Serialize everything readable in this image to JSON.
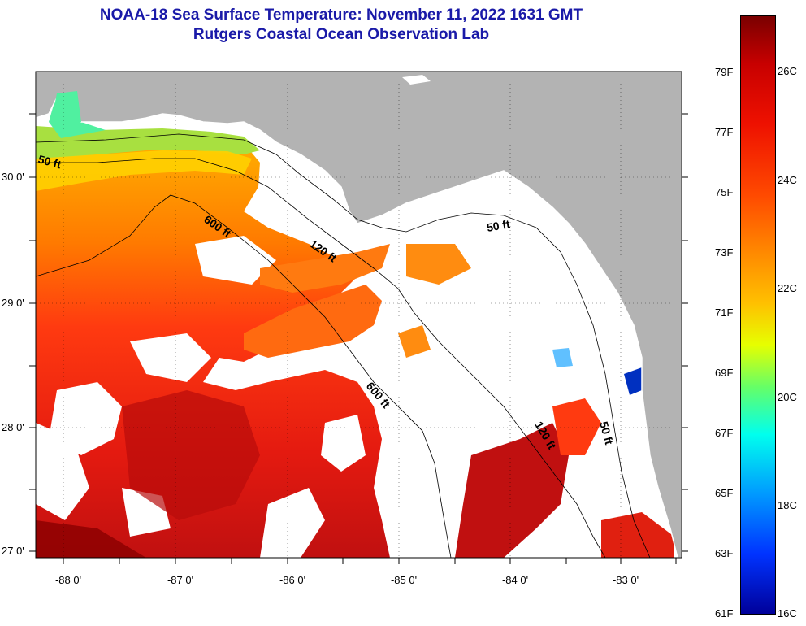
{
  "title": {
    "line1": "NOAA-18 Sea Surface Temperature:  November 11, 2022 1631 GMT",
    "line2": "Rutgers Coastal Ocean Observation Lab"
  },
  "map": {
    "lat_labels": [
      "30 0'",
      "29 0'",
      "28 0'",
      "27 0'"
    ],
    "lon_labels": [
      "-88 0'",
      "-87 0'",
      "-86 0'",
      "-85 0'",
      "-84 0'",
      "-83 0'"
    ],
    "lat_values": [
      30,
      29,
      28,
      27
    ],
    "lon_values": [
      -88,
      -87,
      -86,
      -85,
      -84,
      -83
    ],
    "bounds": {
      "west": -88.3,
      "east": -82.5,
      "north": 30.85,
      "south": 26.95
    },
    "depth_labels": [
      "50 ft",
      "600 ft",
      "120 ft",
      "50 ft",
      "600 ft",
      "120 ft",
      "50 ft"
    ],
    "colors": {
      "land": "#b3b3b3",
      "cloud": "#ffffff",
      "contour": "#000000"
    }
  },
  "colorbar": {
    "fahrenheit": [
      "79F",
      "77F",
      "75F",
      "73F",
      "71F",
      "69F",
      "67F",
      "65F",
      "63F",
      "61F"
    ],
    "celsius": [
      "26C",
      "24C",
      "22C",
      "20C",
      "18C",
      "16C"
    ],
    "range_f": [
      61,
      81
    ],
    "colors": [
      "#00009a",
      "#0033ff",
      "#0099ff",
      "#00ffee",
      "#66ff66",
      "#e6ff00",
      "#ffc000",
      "#ff8c00",
      "#ff4a00",
      "#ee1100",
      "#c80000",
      "#7a0000"
    ]
  }
}
